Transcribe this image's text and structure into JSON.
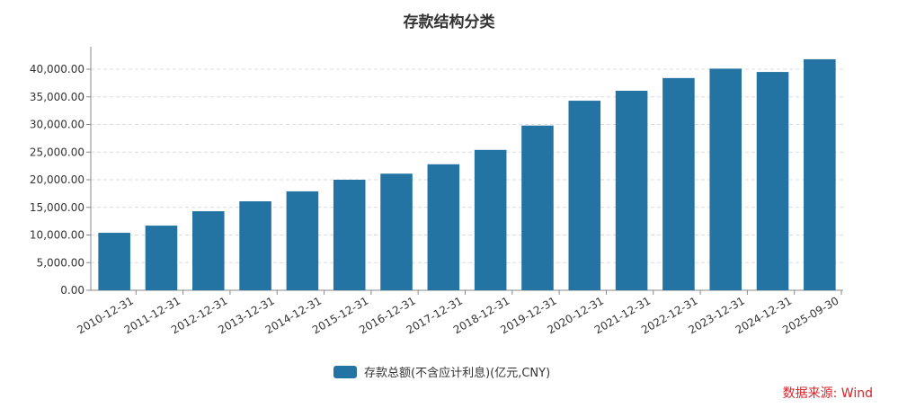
{
  "chart_data": {
    "type": "bar",
    "title": "存款结构分类",
    "xlabel": "",
    "ylabel": "",
    "ylim": [
      0,
      45000
    ],
    "yticks": [
      "0.00",
      "5,000.00",
      "10,000.00",
      "15,000.00",
      "20,000.00",
      "25,000.00",
      "30,000.00",
      "35,000.00",
      "40,000.00"
    ],
    "grid": true,
    "legend_position": "bottom",
    "categories": [
      "2010-12-31",
      "2011-12-31",
      "2012-12-31",
      "2013-12-31",
      "2014-12-31",
      "2015-12-31",
      "2016-12-31",
      "2017-12-31",
      "2018-12-31",
      "2019-12-31",
      "2020-12-31",
      "2021-12-31",
      "2022-12-31",
      "2023-12-31",
      "2024-12-31",
      "2025-09-30"
    ],
    "series": [
      {
        "name": "存款总额(不含应计利息)(亿元,CNY)",
        "color": "#2474a3",
        "values": [
          10400,
          11700,
          14300,
          16100,
          17900,
          20000,
          21100,
          22800,
          25400,
          29800,
          34300,
          36100,
          38400,
          40100,
          39500,
          41800
        ]
      }
    ]
  },
  "title": "存款结构分类",
  "legend": {
    "label": "存款总额(不含应计利息)(亿元,CNY)"
  },
  "source": "数据来源: Wind"
}
